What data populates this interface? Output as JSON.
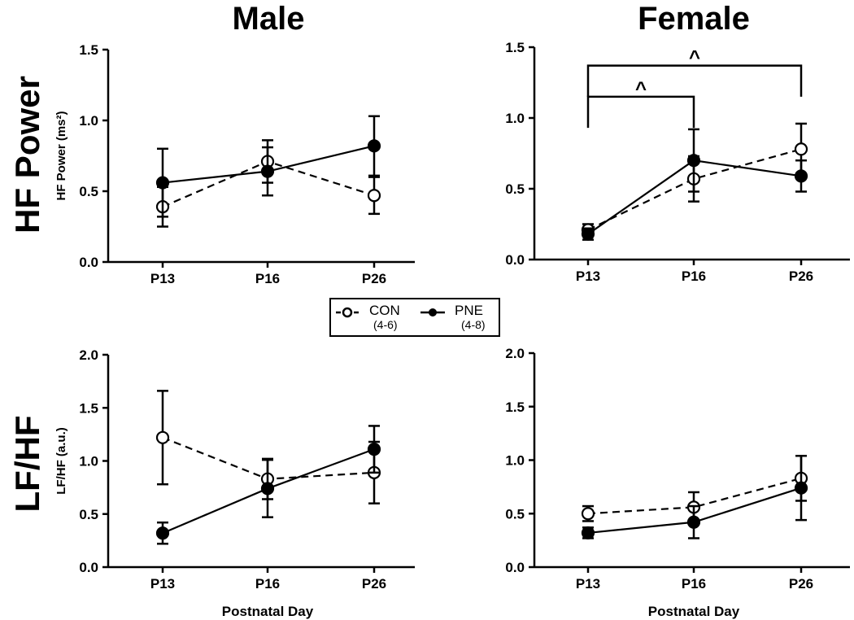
{
  "column_titles": [
    "Male",
    "Female"
  ],
  "row_titles": [
    "HF Power",
    "LF/HF"
  ],
  "legend": [
    {
      "name": "CON",
      "n": "(4-6)",
      "marker": "open-circle",
      "line": "dashed"
    },
    {
      "name": "PNE",
      "n": "(4-8)",
      "marker": "filled-circle",
      "line": "solid"
    }
  ],
  "chart_data": [
    {
      "type": "line",
      "title": "Male HF Power",
      "ylabel": "HF Power (ms²)",
      "xlabel": "",
      "categories": [
        "P13",
        "P16",
        "P26"
      ],
      "ylim": [
        0,
        1.5
      ],
      "yticks": [
        "0.0",
        "0.5",
        "1.0",
        "1.5"
      ],
      "series": [
        {
          "name": "CON",
          "values": [
            0.39,
            0.71,
            0.47
          ],
          "sem": [
            0.14,
            0.15,
            0.13
          ]
        },
        {
          "name": "PNE",
          "values": [
            0.56,
            0.64,
            0.82
          ],
          "sem": [
            0.24,
            0.17,
            0.21
          ]
        }
      ],
      "annotations": []
    },
    {
      "type": "line",
      "title": "Female HF Power",
      "ylabel": "",
      "xlabel": "",
      "categories": [
        "P13",
        "P16",
        "P26"
      ],
      "ylim": [
        0,
        1.5
      ],
      "yticks": [
        "0.0",
        "0.5",
        "1.0",
        "1.5"
      ],
      "series": [
        {
          "name": "CON",
          "values": [
            0.21,
            0.57,
            0.78
          ],
          "sem": [
            0.04,
            0.16,
            0.18
          ]
        },
        {
          "name": "PNE",
          "values": [
            0.18,
            0.7,
            0.59
          ],
          "sem": [
            0.04,
            0.22,
            0.11
          ]
        }
      ],
      "annotations": [
        {
          "label": "^",
          "from": "P13",
          "to": "P16",
          "y": 1.15
        },
        {
          "label": "^",
          "from": "P13",
          "to": "P26",
          "y": 1.37
        }
      ]
    },
    {
      "type": "line",
      "title": "Male LF/HF",
      "ylabel": "LF/HF (a.u.)",
      "xlabel": "Postnatal Day",
      "categories": [
        "P13",
        "P16",
        "P26"
      ],
      "ylim": [
        0,
        2.0
      ],
      "yticks": [
        "0.0",
        "0.5",
        "1.0",
        "1.5",
        "2.0"
      ],
      "series": [
        {
          "name": "CON",
          "values": [
            1.22,
            0.83,
            0.89
          ],
          "sem": [
            0.44,
            0.19,
            0.29
          ]
        },
        {
          "name": "PNE",
          "values": [
            0.32,
            0.74,
            1.11
          ],
          "sem": [
            0.1,
            0.27,
            0.22
          ]
        }
      ],
      "annotations": []
    },
    {
      "type": "line",
      "title": "Female LF/HF",
      "ylabel": "",
      "xlabel": "Postnatal Day",
      "categories": [
        "P13",
        "P16",
        "P26"
      ],
      "ylim": [
        0,
        2.0
      ],
      "yticks": [
        "0.0",
        "0.5",
        "1.0",
        "1.5",
        "2.0"
      ],
      "series": [
        {
          "name": "CON",
          "values": [
            0.5,
            0.56,
            0.83
          ],
          "sem": [
            0.07,
            0.14,
            0.21
          ]
        },
        {
          "name": "PNE",
          "values": [
            0.32,
            0.42,
            0.74
          ],
          "sem": [
            0.05,
            0.15,
            0.3
          ]
        }
      ],
      "annotations": []
    }
  ]
}
